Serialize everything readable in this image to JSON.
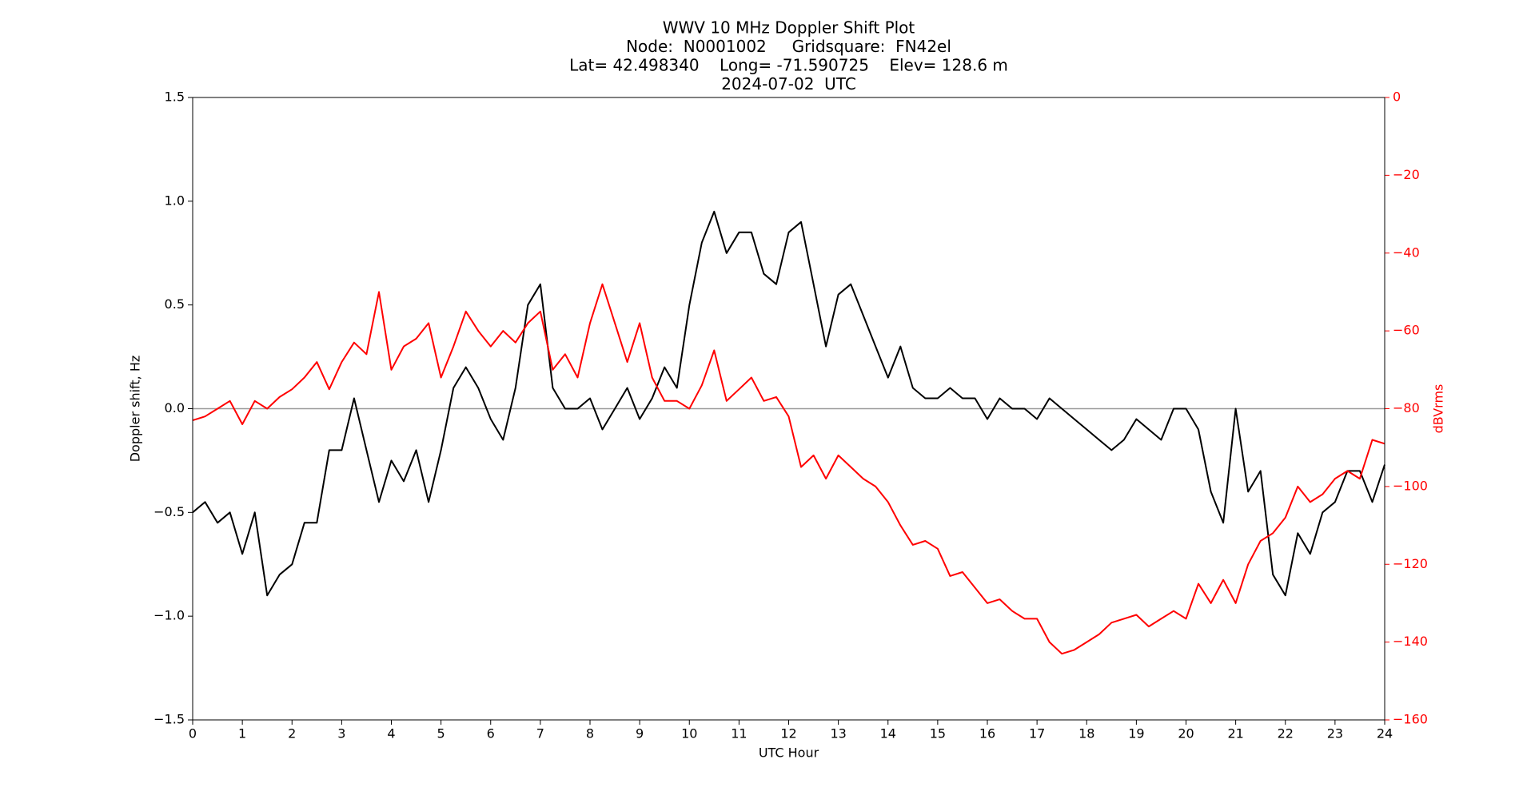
{
  "chart_data": {
    "type": "line",
    "title": [
      "WWV 10 MHz Doppler Shift Plot",
      "Node:  N0001002     Gridsquare:  FN42el",
      "Lat= 42.498340    Long= -71.590725    Elev= 128.6 m",
      "2024-07-02  UTC"
    ],
    "xlabel": "UTC Hour",
    "ylabel": "Doppler shift, Hz",
    "y2label": "dBVrms",
    "x": [
      0,
      0.25,
      0.5,
      0.75,
      1,
      1.25,
      1.5,
      1.75,
      2,
      2.25,
      2.5,
      2.75,
      3,
      3.25,
      3.5,
      3.75,
      4,
      4.25,
      4.5,
      4.75,
      5,
      5.25,
      5.5,
      5.75,
      6,
      6.25,
      6.5,
      6.75,
      7,
      7.25,
      7.5,
      7.75,
      8,
      8.25,
      8.5,
      8.75,
      9,
      9.25,
      9.5,
      9.75,
      10,
      10.25,
      10.5,
      10.75,
      11,
      11.25,
      11.5,
      11.75,
      12,
      12.25,
      12.5,
      12.75,
      13,
      13.25,
      13.5,
      13.75,
      14,
      14.25,
      14.5,
      14.75,
      15,
      15.25,
      15.5,
      15.75,
      16,
      16.25,
      16.5,
      16.75,
      17,
      17.25,
      17.5,
      17.75,
      18,
      18.25,
      18.5,
      18.75,
      19,
      19.25,
      19.5,
      19.75,
      20,
      20.25,
      20.5,
      20.75,
      21,
      21.25,
      21.5,
      21.75,
      22,
      22.25,
      22.5,
      22.75,
      23,
      23.25,
      23.5,
      23.75,
      24
    ],
    "series": [
      {
        "name": "Doppler shift",
        "color": "#000000",
        "axis": "y",
        "values": [
          -0.5,
          -0.45,
          -0.55,
          -0.5,
          -0.7,
          -0.5,
          -0.9,
          -0.8,
          -0.75,
          -0.55,
          -0.55,
          -0.2,
          -0.2,
          0.05,
          -0.2,
          -0.45,
          -0.25,
          -0.35,
          -0.2,
          -0.45,
          -0.2,
          0.1,
          0.2,
          0.1,
          -0.05,
          -0.15,
          0.1,
          0.5,
          0.6,
          0.1,
          0.0,
          0.0,
          0.05,
          -0.1,
          0.0,
          0.1,
          -0.05,
          0.05,
          0.2,
          0.1,
          0.5,
          0.8,
          0.95,
          0.75,
          0.85,
          0.85,
          0.65,
          0.6,
          0.85,
          0.9,
          0.6,
          0.3,
          0.55,
          0.6,
          0.45,
          0.3,
          0.15,
          0.3,
          0.1,
          0.05,
          0.05,
          0.1,
          0.05,
          0.05,
          -0.05,
          0.05,
          0.0,
          0.0,
          -0.05,
          0.05,
          0.0,
          -0.05,
          -0.1,
          -0.15,
          -0.2,
          -0.15,
          -0.05,
          -0.1,
          -0.15,
          0.0,
          0.0,
          -0.1,
          -0.4,
          -0.55,
          0.0,
          -0.4,
          -0.3,
          -0.8,
          -0.9,
          -0.6,
          -0.7,
          -0.5,
          -0.45,
          -0.3,
          -0.3,
          -0.45,
          -0.27
        ]
      },
      {
        "name": "dBVrms",
        "color": "#ff0000",
        "axis": "y2",
        "values": [
          -83,
          -82,
          -80,
          -78,
          -84,
          -78,
          -80,
          -77,
          -75,
          -72,
          -68,
          -75,
          -68,
          -63,
          -66,
          -50,
          -70,
          -64,
          -62,
          -58,
          -72,
          -64,
          -55,
          -60,
          -64,
          -60,
          -63,
          -58,
          -55,
          -70,
          -66,
          -72,
          -58,
          -48,
          -58,
          -68,
          -58,
          -72,
          -78,
          -78,
          -80,
          -74,
          -65,
          -78,
          -75,
          -72,
          -78,
          -77,
          -82,
          -95,
          -92,
          -98,
          -92,
          -95,
          -98,
          -100,
          -104,
          -110,
          -115,
          -114,
          -116,
          -123,
          -122,
          -126,
          -130,
          -129,
          -132,
          -134,
          -134,
          -140,
          -143,
          -142,
          -140,
          -138,
          -135,
          -134,
          -133,
          -136,
          -134,
          -132,
          -134,
          -125,
          -130,
          -124,
          -130,
          -120,
          -114,
          -112,
          -108,
          -100,
          -104,
          -102,
          -98,
          -96,
          -98,
          -88,
          -89
        ]
      }
    ],
    "xlim": [
      0,
      24
    ],
    "xticks": [
      0,
      1,
      2,
      3,
      4,
      5,
      6,
      7,
      8,
      9,
      10,
      11,
      12,
      13,
      14,
      15,
      16,
      17,
      18,
      19,
      20,
      21,
      22,
      23,
      24
    ],
    "ylim": [
      -1.5,
      1.5
    ],
    "yticks": [
      {
        "value": -1.5,
        "label": "−1.5"
      },
      {
        "value": -1.0,
        "label": "−1.0"
      },
      {
        "value": -0.5,
        "label": "−0.5"
      },
      {
        "value": 0,
        "label": "0.0"
      },
      0.5,
      {
        "value": 1.0,
        "label": "1.0"
      },
      1.5
    ],
    "y2lim": [
      -160,
      0
    ],
    "y2ticks": [
      {
        "value": -160,
        "label": "−160"
      },
      {
        "value": -140,
        "label": "−140"
      },
      {
        "value": -120,
        "label": "−120"
      },
      {
        "value": -100,
        "label": "−100"
      },
      {
        "value": -80,
        "label": "−80"
      },
      {
        "value": -60,
        "label": "−60"
      },
      {
        "value": -40,
        "label": "−40"
      },
      {
        "value": -20,
        "label": "−20"
      },
      0
    ],
    "y2color": "#ff0000",
    "hline": 0,
    "hline_color": "#999999"
  }
}
